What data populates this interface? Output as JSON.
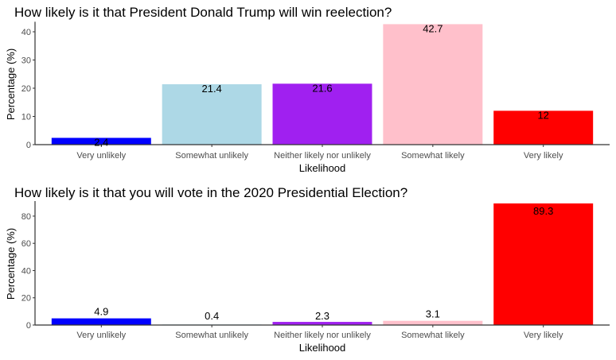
{
  "chart_data": [
    {
      "type": "bar",
      "title": "How likely is it that President Donald Trump will win reelection?",
      "xlabel": "Likelihood",
      "ylabel": "Percentage (%)",
      "categories": [
        "Very unlikely",
        "Somewhat unlikely",
        "Neither likely nor unlikely",
        "Somewhat likely",
        "Very likely"
      ],
      "values": [
        2.4,
        21.4,
        21.6,
        42.7,
        12
      ],
      "data_labels": [
        "2.4",
        "21.4",
        "21.6",
        "42.7",
        "12"
      ],
      "colors": [
        "#0000FF",
        "#ADD8E6",
        "#A020F0",
        "#FFC0CB",
        "#FF0000"
      ],
      "yticks": [
        0,
        10,
        20,
        30,
        40
      ],
      "ylim": [
        0,
        42.7
      ],
      "grid": false
    },
    {
      "type": "bar",
      "title": "How likely is it that you will vote in the 2020 Presidential Election?",
      "xlabel": "Likelihood",
      "ylabel": "Percentage (%)",
      "categories": [
        "Very unlikely",
        "Somewhat unlikely",
        "Neither likely nor unlikely",
        "Somewhat likely",
        "Very likely"
      ],
      "values": [
        4.9,
        0.4,
        2.3,
        3.1,
        89.3
      ],
      "data_labels": [
        "4.9",
        "0.4",
        "2.3",
        "3.1",
        "89.3"
      ],
      "colors": [
        "#0000FF",
        "#ADD8E6",
        "#A020F0",
        "#FFC0CB",
        "#FF0000"
      ],
      "yticks": [
        0,
        20,
        40,
        60,
        80
      ],
      "ylim": [
        0,
        89.3
      ],
      "grid": false
    }
  ]
}
